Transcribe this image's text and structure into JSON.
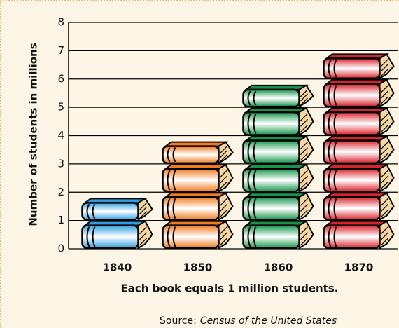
{
  "chart_data": {
    "type": "pictograph",
    "y_label": "Number of students in millions",
    "note": "Each book equals 1 million students.",
    "source_label": "Source:",
    "source_title": "Census of the United States",
    "categories": [
      "1840",
      "1850",
      "1860",
      "1870"
    ],
    "values": [
      1.8,
      3.8,
      5.8,
      6.9
    ],
    "colors": [
      "#2f9ee0",
      "#f07a1e",
      "#15954a",
      "#d9232a"
    ],
    "ylim": [
      0,
      8
    ],
    "yticks": [
      0,
      1,
      2,
      3,
      4,
      5,
      6,
      7,
      8
    ],
    "grid": true
  }
}
